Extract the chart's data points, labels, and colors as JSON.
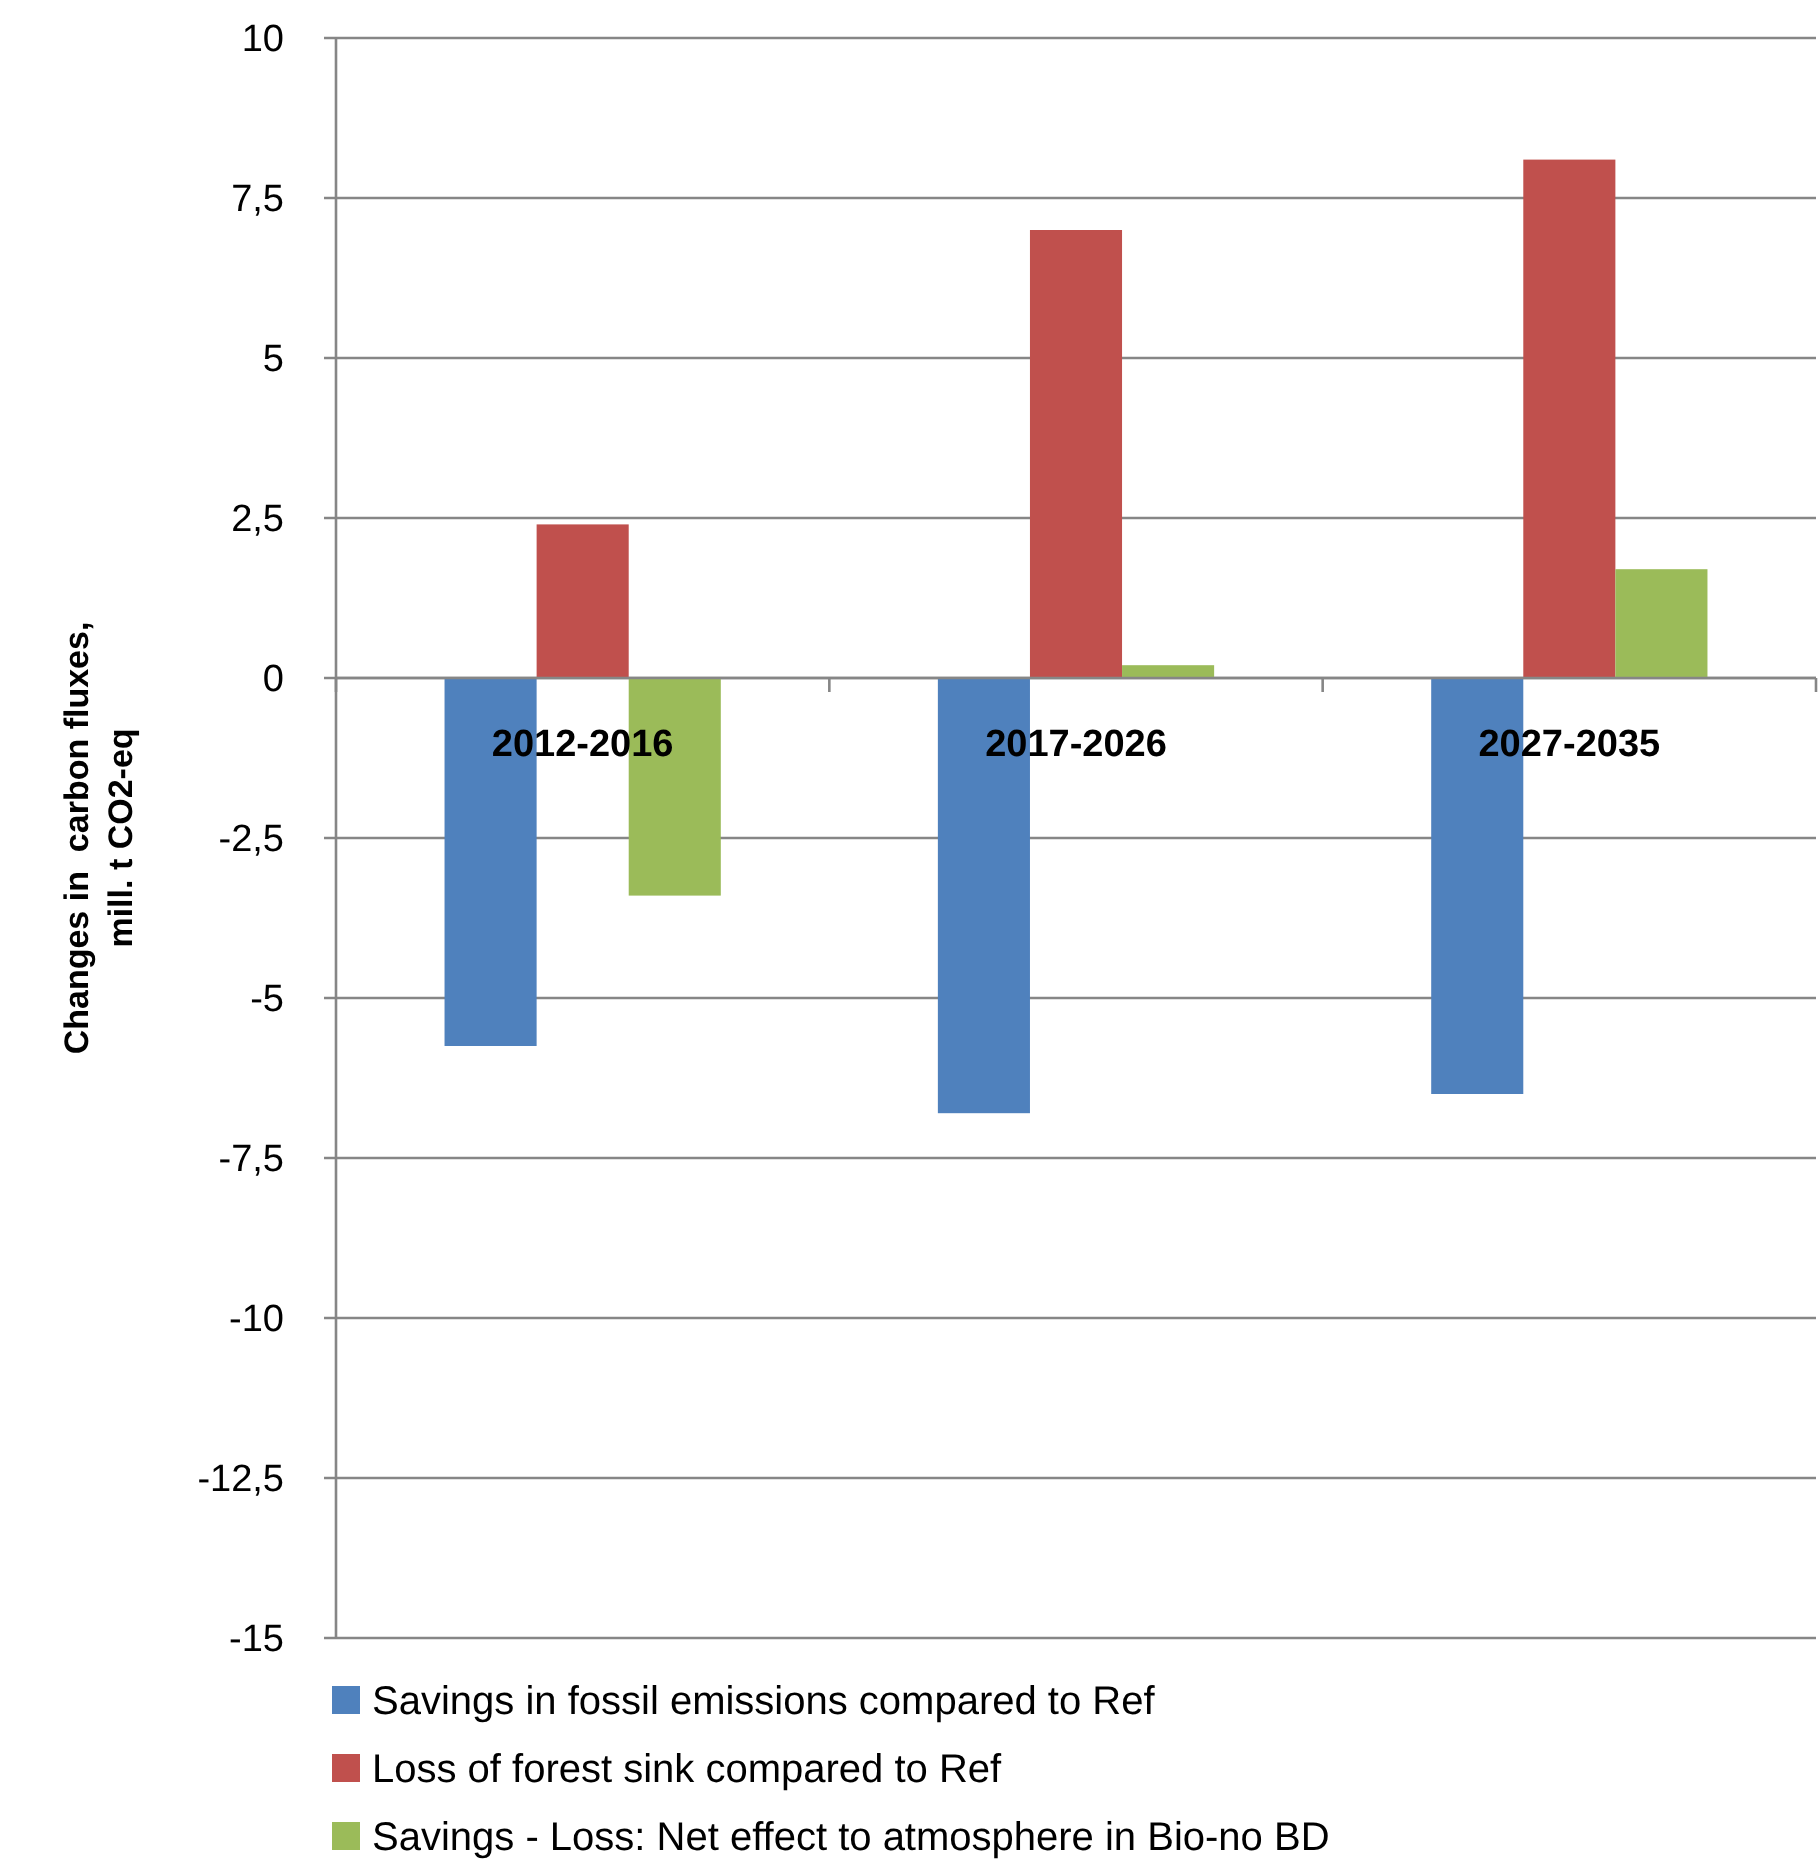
{
  "chart_data": {
    "type": "bar",
    "ylabel": "Changes in  carbon fluxes,\nmill. t CO2-eq",
    "categories": [
      "2012-2016",
      "2017-2026",
      "2027-2035"
    ],
    "series": [
      {
        "name": "Savings in fossil emissions compared to Ref",
        "color": "#4f81bd",
        "values": [
          -5.75,
          -6.8,
          -6.5
        ]
      },
      {
        "name": "Loss of forest sink compared to Ref",
        "color": "#c0504d",
        "values": [
          2.4,
          7.0,
          8.1
        ]
      },
      {
        "name": "Savings - Loss: Net effect to atmosphere in Bio-no BD",
        "color": "#9bbb59",
        "values": [
          -3.4,
          0.2,
          1.7
        ]
      }
    ],
    "ylim": [
      -15,
      10
    ],
    "yticks": [
      {
        "value": 10,
        "label": "10"
      },
      {
        "value": 7.5,
        "label": "7,5"
      },
      {
        "value": 5,
        "label": "5"
      },
      {
        "value": 2.5,
        "label": "2,5"
      },
      {
        "value": 0,
        "label": "0"
      },
      {
        "value": -2.5,
        "label": "-2,5"
      },
      {
        "value": -5,
        "label": "-5"
      },
      {
        "value": -7.5,
        "label": "-7,5"
      },
      {
        "value": -10,
        "label": "-10"
      },
      {
        "value": -12.5,
        "label": "-12,5"
      },
      {
        "value": -15,
        "label": "-15"
      }
    ],
    "grid": "y",
    "legend": "bottom"
  }
}
